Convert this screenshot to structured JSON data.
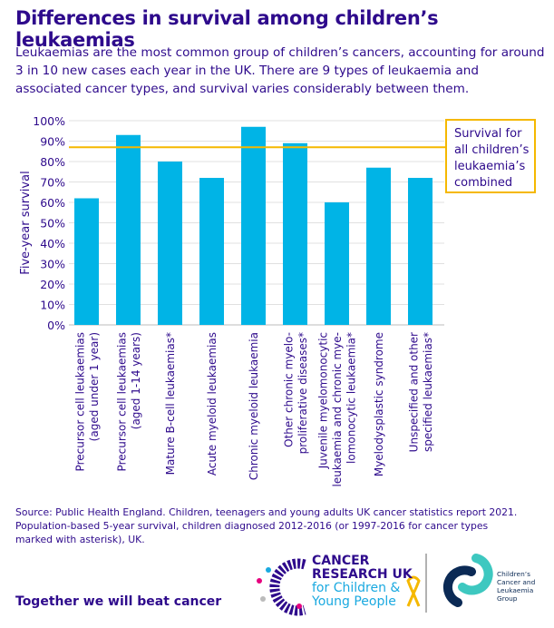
{
  "title": "Differences in survival among children’s leukaemias",
  "subtitle": "Leukaemias are the most common group of children’s cancers, accounting for around 3 in 10 new cases each year in the UK. There are 9 types of leukaemia and associated cancer types, and survival varies considerably between them.",
  "source_lines": [
    "Source: Public Health England. Children, teenagers and young adults UK cancer statistics report 2021.",
    "Population-based 5-year survival, children diagnosed 2012-2016 (or 1997-2016 for cancer types",
    "marked with asterisk), UK."
  ],
  "tagline": "Together we will beat cancer",
  "logos": {
    "cruk": [
      "CANCER",
      "RESEARCH UK",
      "for Children &",
      "Young People"
    ],
    "cclg": [
      "Children’s",
      "Cancer and",
      "Leukaemia",
      "Group"
    ]
  },
  "colors": {
    "text": "#2e0a8c",
    "bar": "#00b4e6",
    "reference_line": "#f5b800",
    "grid": "#e0e0e0"
  },
  "chart_data": {
    "type": "bar",
    "ylabel": "Five-year survival",
    "ylim": [
      0,
      100
    ],
    "yticks": [
      "0%",
      "10%",
      "20%",
      "30%",
      "40%",
      "50%",
      "60%",
      "70%",
      "80%",
      "90%",
      "100%"
    ],
    "grid": true,
    "categories": [
      [
        "Precursor cell leukaemias",
        "(aged under 1 year)"
      ],
      [
        "Precursor cell leukaemias",
        "(aged 1-14 years)"
      ],
      [
        "Mature B-cell leukaemias*"
      ],
      [
        "Acute myeloid leukaemias"
      ],
      [
        "Chronic myeloid leukaemia"
      ],
      [
        "Other chronic myelo-",
        "proliferative diseases*"
      ],
      [
        "Juvenile myelomonocytic",
        "leukaemia and chronic mye-",
        "lomonocytic leukaemia*"
      ],
      [
        "Myelodysplastic syndrome"
      ],
      [
        "Unspecified and other",
        "specified leukaemias*"
      ]
    ],
    "values": [
      62,
      93,
      80,
      72,
      97,
      89,
      60,
      77,
      72
    ],
    "reference_line": {
      "value": 87,
      "label": [
        "Survival for",
        "all children’s",
        "leukaemia’s",
        "combined"
      ]
    }
  }
}
